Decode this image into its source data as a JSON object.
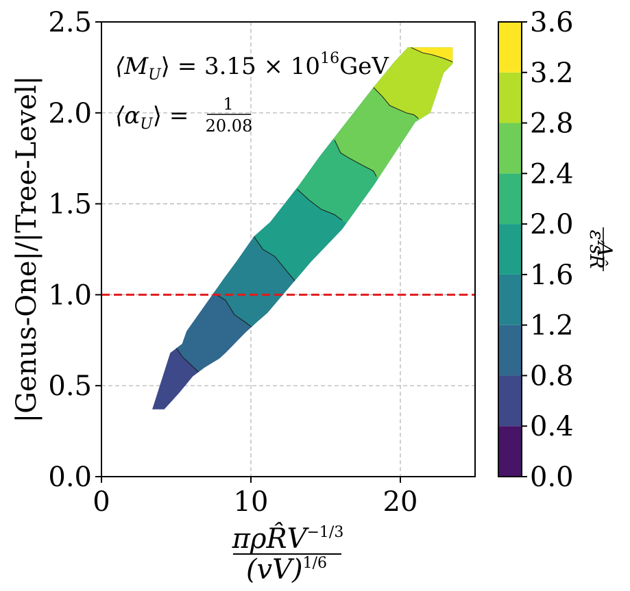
{
  "chart_data": {
    "type": "heatmap",
    "title": "",
    "xlabel": {
      "numerator": "πρR̂V",
      "numerator_exponent": "−1/3",
      "denominator": "(vV)",
      "denominator_exponent": "1/6"
    },
    "ylabel": "|Genus-One|/|Tree-Level|",
    "xlim": [
      0,
      25
    ],
    "ylim": [
      0,
      2.5
    ],
    "x_ticks": [
      0,
      10,
      20
    ],
    "x_tick_labels": [
      "0",
      "10",
      "20"
    ],
    "y_ticks": [
      0.0,
      0.5,
      1.0,
      1.5,
      2.0,
      2.5
    ],
    "y_tick_labels": [
      "0.0",
      "0.5",
      "1.0",
      "1.5",
      "2.0",
      "2.5"
    ],
    "grid": true,
    "reference_line": {
      "y": 1.0,
      "color": "#e31a1c",
      "style": "dashed"
    },
    "annotations": {
      "mass": {
        "lhs": "⟨M",
        "sub": "U",
        "rhs": "⟩ = 3.15 × 10",
        "exp": "16",
        "unit": "GeV"
      },
      "alpha": {
        "lhs": "⟨α",
        "sub": "U",
        "rhs": "⟩ =",
        "frac_num": "1",
        "frac_den": "20.08"
      }
    },
    "colorbar": {
      "label": "Λ / ε′sR̂",
      "label_num": "Λ",
      "label_den": "ε′sR̂",
      "levels": [
        0.0,
        0.4,
        0.8,
        1.2,
        1.6,
        2.0,
        2.4,
        2.8,
        3.2,
        3.6
      ],
      "tick_labels": [
        "0.0",
        "0.4",
        "0.8",
        "1.2",
        "1.6",
        "2.0",
        "2.4",
        "2.8",
        "3.2",
        "3.6"
      ],
      "colors": [
        "#481467",
        "#3e4989",
        "#31688e",
        "#26828e",
        "#1f9e89",
        "#35b779",
        "#6ece58",
        "#b5de2b",
        "#fde725"
      ]
    },
    "region": {
      "description": "filled contour band",
      "upper_edge": [
        [
          3.4,
          0.37
        ],
        [
          4.6,
          0.68
        ],
        [
          5.4,
          0.73
        ],
        [
          5.7,
          0.8
        ],
        [
          8.2,
          1.09
        ],
        [
          9.1,
          1.19
        ],
        [
          10.2,
          1.32
        ],
        [
          11.3,
          1.4
        ],
        [
          13.2,
          1.6
        ],
        [
          14.6,
          1.76
        ],
        [
          18.2,
          2.14
        ],
        [
          19.6,
          2.28
        ],
        [
          20.5,
          2.36
        ],
        [
          23.5,
          2.36
        ]
      ],
      "lower_edge": [
        [
          23.5,
          2.27
        ],
        [
          22.9,
          2.22
        ],
        [
          22.0,
          2.0
        ],
        [
          21.0,
          1.95
        ],
        [
          18.2,
          1.6
        ],
        [
          16.1,
          1.36
        ],
        [
          14.0,
          1.18
        ],
        [
          11.1,
          0.9
        ],
        [
          10.4,
          0.85
        ],
        [
          9.6,
          0.79
        ],
        [
          8.3,
          0.68
        ],
        [
          7.9,
          0.65
        ],
        [
          6.9,
          0.6
        ],
        [
          6.1,
          0.55
        ],
        [
          5.2,
          0.46
        ],
        [
          4.2,
          0.37
        ]
      ],
      "level_boundaries": [
        {
          "level": 0.8,
          "points": [
            [
              4.9,
              0.72
            ],
            [
              5.4,
              0.66
            ],
            [
              6.3,
              0.59
            ],
            [
              6.7,
              0.56
            ]
          ]
        },
        {
          "level": 1.2,
          "points": [
            [
              7.7,
              1.0
            ],
            [
              8.3,
              0.97
            ],
            [
              8.9,
              0.89
            ],
            [
              9.6,
              0.85
            ],
            [
              10.4,
              0.8
            ]
          ]
        },
        {
          "level": 1.6,
          "points": [
            [
              10.2,
              1.32
            ],
            [
              10.8,
              1.25
            ],
            [
              11.6,
              1.21
            ],
            [
              12.4,
              1.13
            ],
            [
              13.0,
              1.07
            ],
            [
              13.4,
              1.02
            ]
          ]
        },
        {
          "level": 2.0,
          "points": [
            [
              13.1,
              1.58
            ],
            [
              13.9,
              1.52
            ],
            [
              14.7,
              1.47
            ],
            [
              15.6,
              1.44
            ],
            [
              16.1,
              1.41
            ]
          ]
        },
        {
          "level": 2.4,
          "points": [
            [
              15.6,
              1.85
            ],
            [
              16.0,
              1.78
            ],
            [
              16.6,
              1.75
            ],
            [
              17.5,
              1.71
            ],
            [
              18.2,
              1.68
            ],
            [
              18.4,
              1.65
            ]
          ]
        },
        {
          "level": 2.8,
          "points": [
            [
              18.2,
              2.14
            ],
            [
              18.8,
              2.09
            ],
            [
              19.3,
              2.04
            ],
            [
              20.4,
              2.0
            ],
            [
              20.9,
              1.99
            ],
            [
              21.2,
              1.97
            ]
          ]
        },
        {
          "level": 3.2,
          "points": [
            [
              20.7,
              2.36
            ],
            [
              21.5,
              2.33
            ],
            [
              22.1,
              2.32
            ],
            [
              22.9,
              2.3
            ],
            [
              23.5,
              2.28
            ]
          ]
        }
      ]
    }
  }
}
